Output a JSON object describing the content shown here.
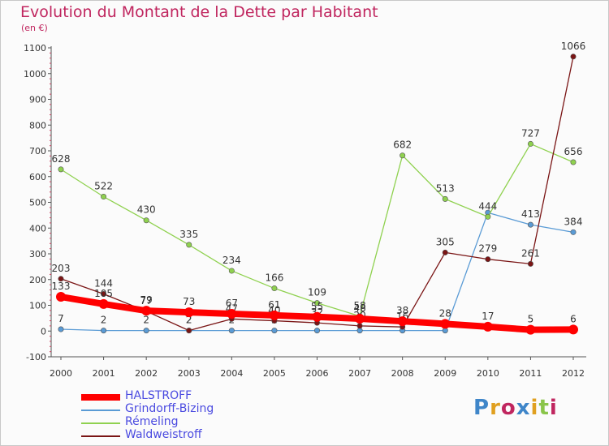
{
  "title": "Evolution du Montant de la Dette par Habitant",
  "unit_label": "(en €)",
  "logo": {
    "text": "Proxiti",
    "colors": [
      "#3f86c9",
      "#e0a020",
      "#c0265f",
      "#3f86c9",
      "#e0a020",
      "#8ac54a",
      "#c0265f"
    ]
  },
  "chart_data": {
    "type": "line",
    "title": "Evolution du Montant de la Dette par Habitant",
    "ylabel": "(en €)",
    "xlabel": "",
    "x": [
      "2000",
      "2001",
      "2002",
      "2003",
      "2004",
      "2005",
      "2006",
      "2007",
      "2008",
      "2009",
      "2010",
      "2011",
      "2012"
    ],
    "ylim": [
      -100,
      1100
    ],
    "yticks": [
      -100,
      0,
      100,
      200,
      300,
      400,
      500,
      600,
      700,
      800,
      900,
      1000,
      1100
    ],
    "grid": false,
    "legend_position": "bottom",
    "series": [
      {
        "name": "Grindorff-Bizing",
        "color": "#5a9bd5",
        "values": [
          7,
          2,
          2,
          2,
          2,
          2,
          2,
          2,
          2,
          2,
          460,
          413,
          384
        ],
        "labels": [
          "7",
          "2",
          "2",
          "2",
          "2",
          "2",
          "2",
          "2",
          "",
          "",
          "",
          "413",
          "384"
        ]
      },
      {
        "name": "Rémeling",
        "color": "#8fd14f",
        "values": [
          628,
          522,
          430,
          335,
          234,
          166,
          109,
          58,
          682,
          513,
          444,
          727,
          656
        ],
        "labels": [
          "628",
          "522",
          "430",
          "335",
          "234",
          "166",
          "109",
          "58",
          "682",
          "513",
          "444",
          "727",
          "656"
        ]
      },
      {
        "name": "Waldweistroff",
        "color": "#7a1515",
        "values": [
          203,
          144,
          77,
          2,
          47,
          40,
          32,
          20,
          16,
          305,
          279,
          261,
          1066
        ],
        "labels": [
          "203",
          "144",
          "77",
          "2",
          "47",
          "40",
          "32",
          "20",
          "16",
          "305",
          "279",
          "261",
          "1066"
        ]
      },
      {
        "name": "HALSTROFF",
        "color": "#ff0000",
        "values": [
          133,
          105,
          79,
          73,
          67,
          61,
          55,
          48,
          38,
          28,
          17,
          5,
          6
        ],
        "labels": [
          "133",
          "105",
          "79",
          "73",
          "67",
          "61",
          "55",
          "48",
          "38",
          "28",
          "17",
          "5",
          "6"
        ]
      }
    ],
    "legend": [
      {
        "name": "HALSTROFF",
        "color": "#ff0000",
        "thick": true
      },
      {
        "name": "Grindorff-Bizing",
        "color": "#5a9bd5",
        "thick": false
      },
      {
        "name": "Rémeling",
        "color": "#8fd14f",
        "thick": false
      },
      {
        "name": "Waldweistroff",
        "color": "#7a1515",
        "thick": false
      }
    ]
  }
}
